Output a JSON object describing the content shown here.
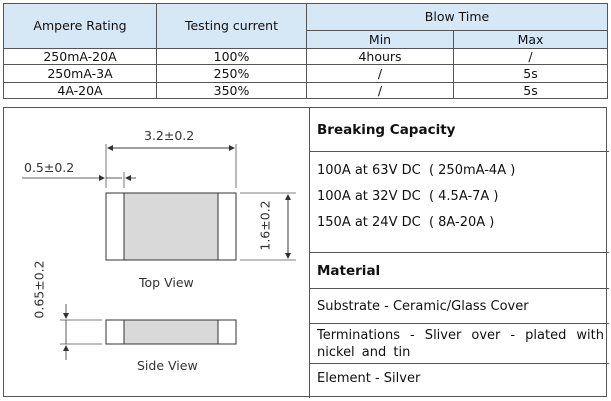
{
  "table": {
    "headers": {
      "ampere_rating": "Ampere Rating",
      "testing_current": "Testing current",
      "blow_time": "Blow Time",
      "min": "Min",
      "max": "Max"
    },
    "rows": [
      {
        "rating": "250mA-20A",
        "current": "100%",
        "min": "4hours",
        "max": "/"
      },
      {
        "rating": "250mA-3A",
        "current": "250%",
        "min": "/",
        "max": "5s"
      },
      {
        "rating": "4A-20A",
        "current": "350%",
        "min": "/",
        "max": "5s"
      }
    ]
  },
  "drawing": {
    "length_dim": "3.2±0.2",
    "terminal_dim": "0.5±0.2",
    "width_dim": "1.6±0.2",
    "height_dim": "0.65±0.2",
    "top_view_label": "Top View",
    "side_view_label": "Side View"
  },
  "breaking_capacity": {
    "title": "Breaking Capacity",
    "lines": [
      "100A at 63V DC  ( 250mA-4A )",
      "100A at 32V DC  ( 4.5A-7A )",
      "150A at 24V DC  ( 8A-20A )"
    ]
  },
  "material": {
    "title": "Material",
    "substrate": "Substrate - Ceramic/Glass Cover",
    "terminations": "Terminations - Sliver over - plated with nickel and tin",
    "element": "Element - Silver"
  }
}
